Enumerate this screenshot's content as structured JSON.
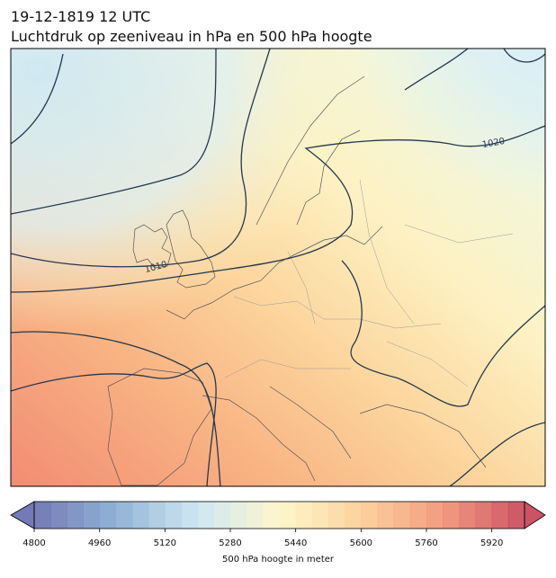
{
  "header": {
    "title": "19-12-1819 12 UTC",
    "subtitle": "Luchtdruk op zeeniveau in hPa en 500 hPa hoogte"
  },
  "map": {
    "contour_labels": [
      "1010",
      "1020"
    ]
  },
  "colorbar": {
    "label": "500 hPa hoogte in meter",
    "lim": [
      4800,
      6000
    ],
    "step": 40,
    "ticks": [
      4800,
      4960,
      5120,
      5280,
      5440,
      5600,
      5760,
      5920
    ],
    "colors": [
      "#5b63a8",
      "#7fa6cf",
      "#c7e3ef",
      "#fdf6c3",
      "#fcc98c",
      "#f08a6a",
      "#c3354a"
    ]
  }
}
